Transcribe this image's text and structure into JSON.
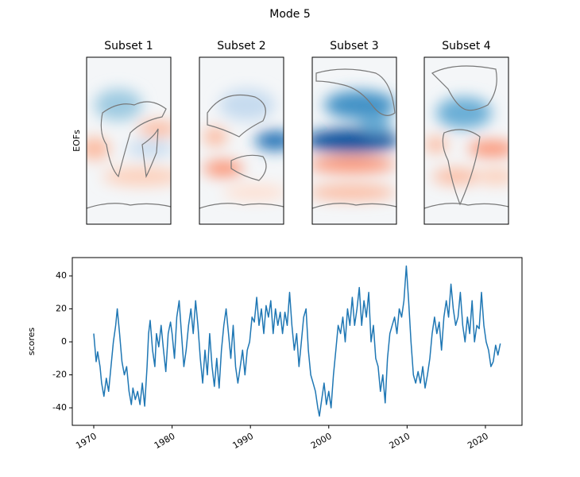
{
  "title": "Mode 5",
  "chart_data": [
    {
      "type": "map",
      "titles": [
        "Subset 1",
        "Subset 2",
        "Subset 3",
        "Subset 4"
      ],
      "ylabel": "EOFs"
    },
    {
      "type": "line",
      "ylabel": "scores",
      "xlim": [
        1967.26,
        2024.67
      ],
      "ylim": [
        -50.6,
        51.1
      ],
      "xticks": [
        1970,
        1980,
        1990,
        2000,
        2010,
        2020
      ],
      "yticks": [
        -40,
        -20,
        0,
        20,
        40
      ],
      "x": [
        1970.0,
        1970.3,
        1970.5,
        1970.8,
        1971.0,
        1971.3,
        1971.6,
        1971.9,
        1972.2,
        1972.5,
        1972.8,
        1973.0,
        1973.3,
        1973.6,
        1973.9,
        1974.2,
        1974.5,
        1974.8,
        1975.0,
        1975.3,
        1975.6,
        1975.9,
        1976.2,
        1976.5,
        1976.8,
        1977.0,
        1977.2,
        1977.5,
        1977.8,
        1978.0,
        1978.3,
        1978.6,
        1978.9,
        1979.2,
        1979.5,
        1979.8,
        1980.0,
        1980.3,
        1980.6,
        1980.9,
        1981.2,
        1981.5,
        1981.8,
        1982.1,
        1982.4,
        1982.7,
        1983.0,
        1983.3,
        1983.6,
        1983.9,
        1984.2,
        1984.5,
        1984.8,
        1985.1,
        1985.4,
        1985.7,
        1986.0,
        1986.3,
        1986.6,
        1986.9,
        1987.2,
        1987.5,
        1987.8,
        1988.1,
        1988.4,
        1988.7,
        1989.0,
        1989.3,
        1989.6,
        1989.9,
        1990.2,
        1990.5,
        1990.8,
        1991.1,
        1991.4,
        1991.7,
        1992.0,
        1992.3,
        1992.6,
        1992.9,
        1993.2,
        1993.5,
        1993.8,
        1994.1,
        1994.4,
        1994.7,
        1995.0,
        1995.3,
        1995.6,
        1995.9,
        1996.2,
        1996.5,
        1996.8,
        1997.1,
        1997.4,
        1997.7,
        1998.0,
        1998.3,
        1998.6,
        1998.8,
        1999.1,
        1999.4,
        1999.7,
        2000.0,
        2000.3,
        2000.6,
        2000.9,
        2001.2,
        2001.5,
        2001.8,
        2002.1,
        2002.4,
        2002.7,
        2003.0,
        2003.3,
        2003.6,
        2003.9,
        2004.2,
        2004.5,
        2004.8,
        2005.1,
        2005.4,
        2005.7,
        2006.0,
        2006.3,
        2006.6,
        2006.9,
        2007.2,
        2007.5,
        2007.8,
        2008.1,
        2008.4,
        2008.7,
        2009.0,
        2009.3,
        2009.6,
        2009.9,
        2010.2,
        2010.5,
        2010.8,
        2011.1,
        2011.4,
        2011.7,
        2012.0,
        2012.3,
        2012.6,
        2012.9,
        2013.2,
        2013.5,
        2013.8,
        2014.1,
        2014.4,
        2014.7,
        2015.0,
        2015.3,
        2015.6,
        2015.9,
        2016.2,
        2016.5,
        2016.8,
        2017.1,
        2017.4,
        2017.7,
        2018.0,
        2018.3,
        2018.6,
        2018.9,
        2019.2,
        2019.5,
        2019.8,
        2020.1,
        2020.4,
        2020.7,
        2021.0,
        2021.3,
        2021.6,
        2021.9
      ],
      "series": [
        {
          "color": "#1f77b4",
          "values": [
            5,
            -12,
            -6,
            -15,
            -25,
            -33,
            -22,
            -30,
            -15,
            0,
            10,
            20,
            5,
            -12,
            -20,
            -15,
            -30,
            -38,
            -28,
            -35,
            -30,
            -38,
            -25,
            -39,
            -15,
            5,
            13,
            -5,
            -15,
            5,
            -3,
            10,
            -5,
            -18,
            5,
            12,
            5,
            -10,
            15,
            25,
            5,
            -15,
            -5,
            10,
            20,
            5,
            25,
            10,
            -10,
            -25,
            -5,
            -20,
            5,
            -15,
            -27,
            -10,
            -28,
            -5,
            10,
            20,
            5,
            -10,
            10,
            -15,
            -25,
            -15,
            -5,
            -20,
            -5,
            0,
            15,
            12,
            27,
            10,
            20,
            5,
            22,
            15,
            25,
            5,
            20,
            10,
            18,
            5,
            18,
            10,
            30,
            10,
            -5,
            5,
            -15,
            0,
            15,
            20,
            -5,
            -20,
            -25,
            -30,
            -40,
            -45,
            -35,
            -25,
            -38,
            -30,
            -40,
            -20,
            -5,
            10,
            5,
            15,
            0,
            20,
            10,
            27,
            10,
            20,
            33,
            10,
            25,
            15,
            30,
            0,
            10,
            -10,
            -15,
            -30,
            -20,
            -37,
            -10,
            5,
            10,
            15,
            5,
            20,
            15,
            25,
            46,
            25,
            0,
            -20,
            -25,
            -18,
            -25,
            -15,
            -28,
            -20,
            -10,
            5,
            15,
            5,
            12,
            -5,
            15,
            25,
            15,
            35,
            20,
            10,
            15,
            30,
            10,
            0,
            15,
            5,
            25,
            0,
            10,
            8,
            30,
            10,
            0,
            -5,
            -15,
            -12,
            -2,
            -8,
            -1
          ]
        }
      ]
    }
  ]
}
